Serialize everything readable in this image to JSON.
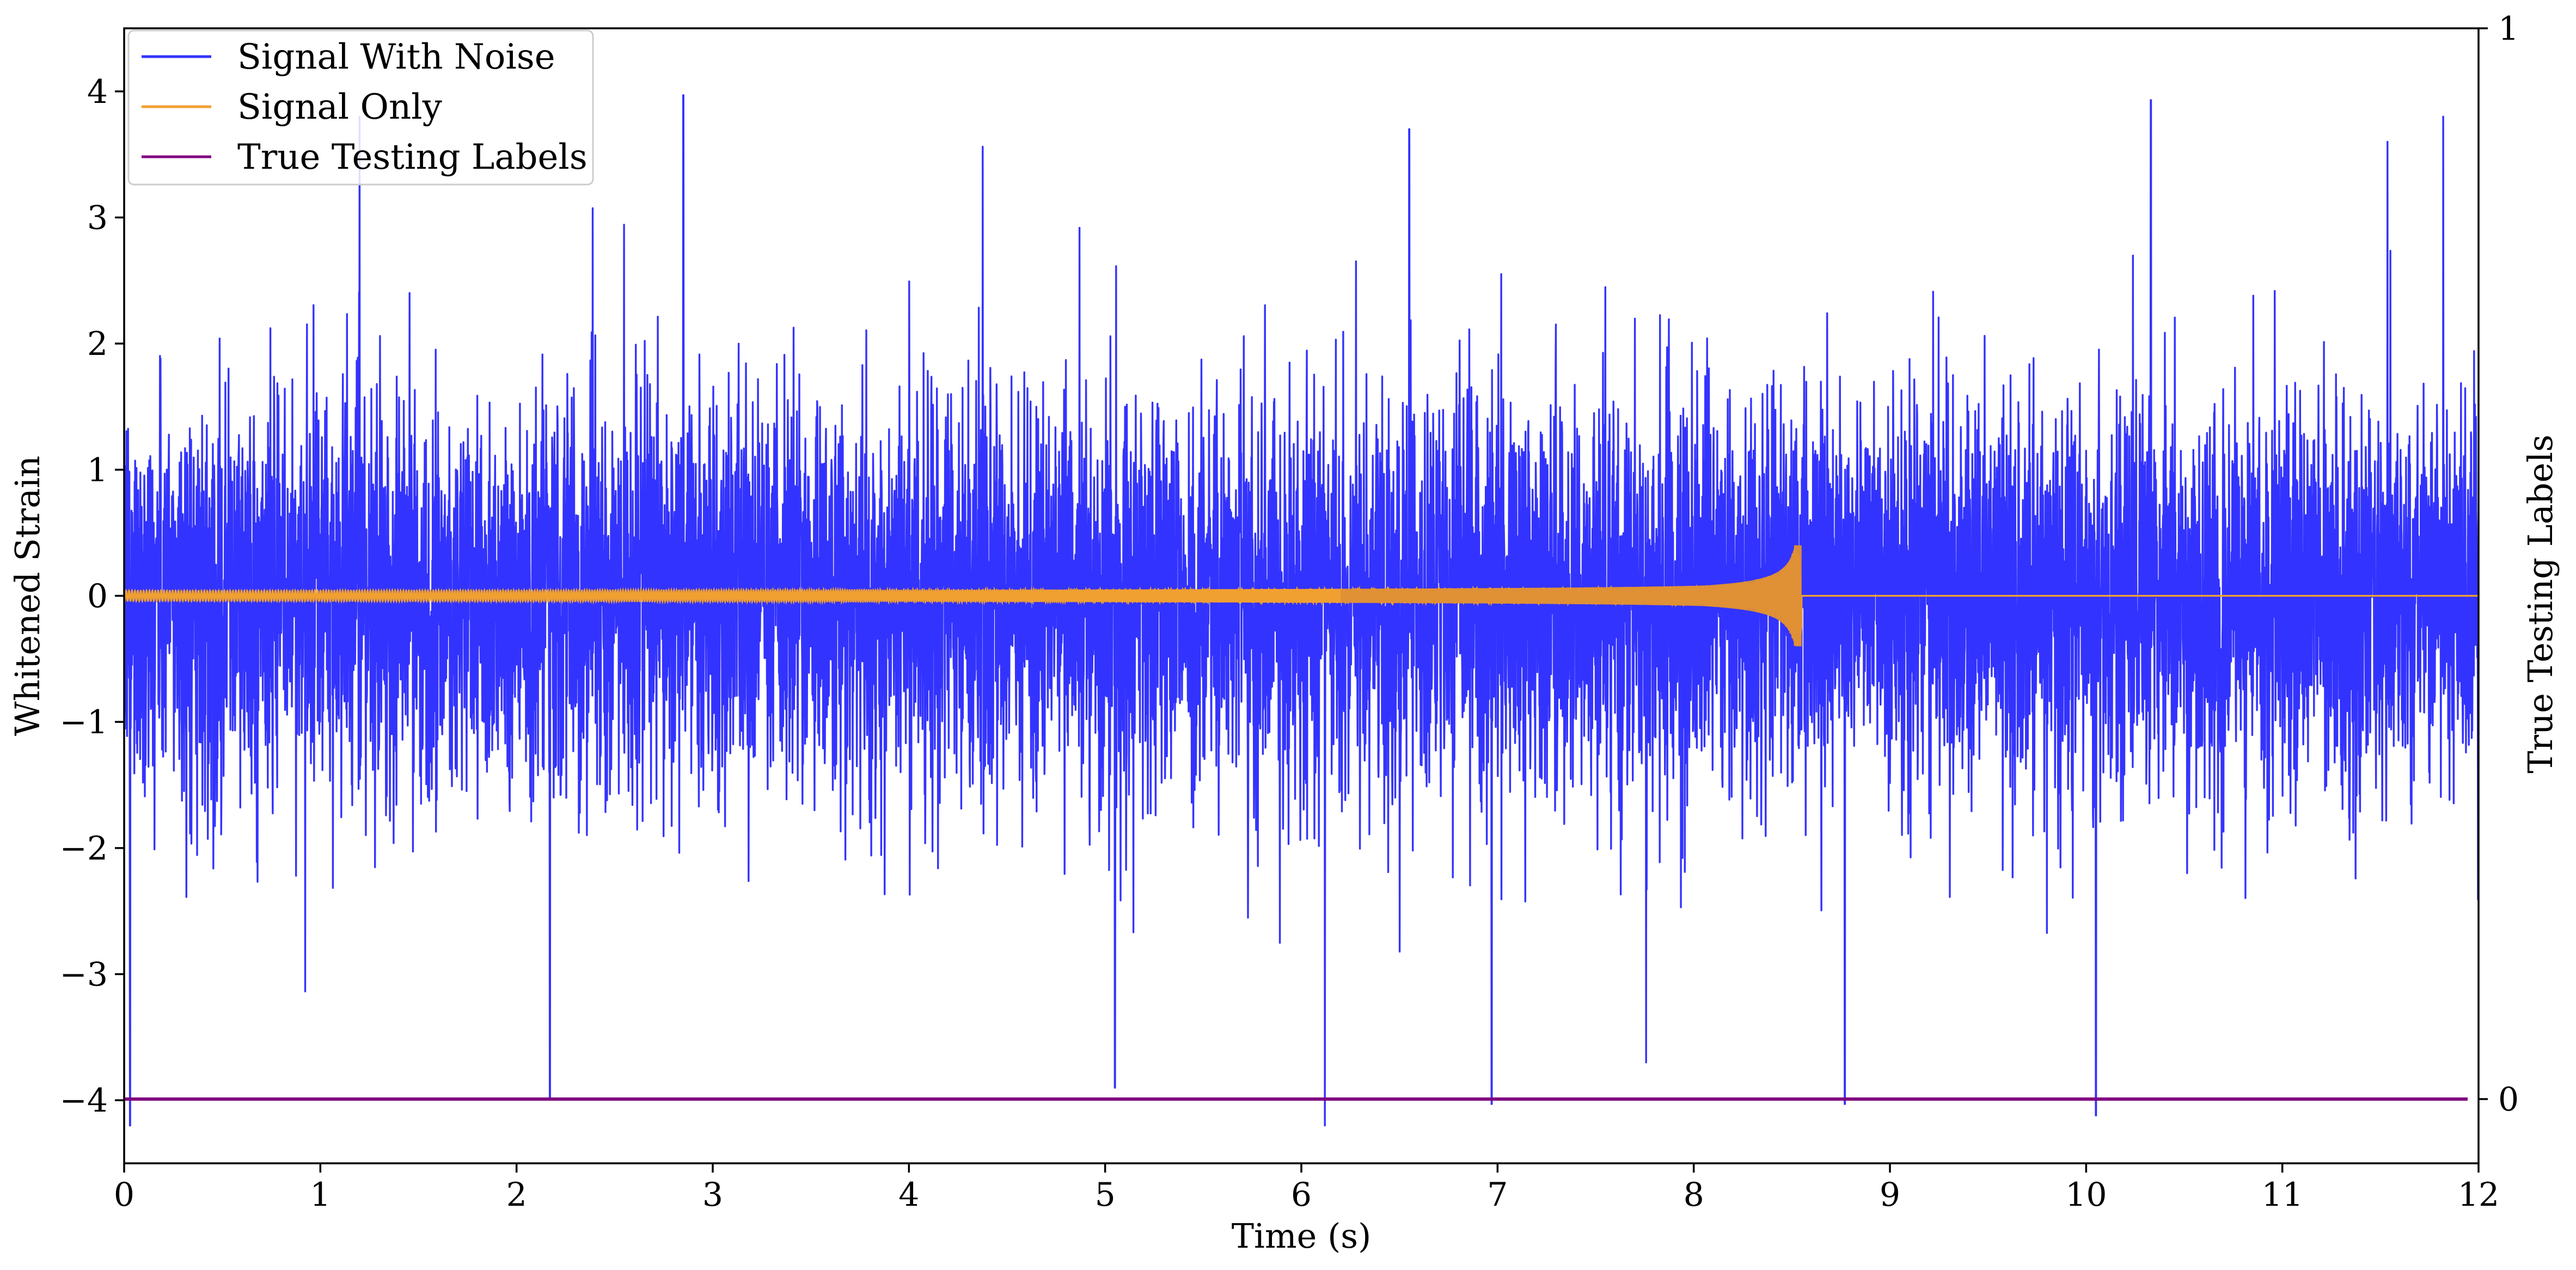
{
  "chart_data": {
    "type": "line",
    "xlabel": "Time (s)",
    "ylabel": "Whitened Strain",
    "y2label": "True Testing Labels",
    "xlim": [
      0,
      12
    ],
    "ylim": [
      -4.5,
      4.5
    ],
    "y2lim": [
      -0.06,
      1.0
    ],
    "x_ticks": [
      0,
      1,
      2,
      3,
      4,
      5,
      6,
      7,
      8,
      9,
      10,
      11,
      12
    ],
    "x_tick_labels": [
      "0",
      "1",
      "2",
      "3",
      "4",
      "5",
      "6",
      "7",
      "8",
      "9",
      "10",
      "11",
      "12"
    ],
    "y_ticks": [
      -4,
      -3,
      -2,
      -1,
      0,
      1,
      2,
      3,
      4
    ],
    "y_tick_labels": [
      "−4",
      "−3",
      "−2",
      "−1",
      "0",
      "1",
      "2",
      "3",
      "4"
    ],
    "y2_ticks": [
      0,
      1
    ],
    "y2_tick_labels": [
      "0",
      "1"
    ],
    "grid": false,
    "legend_position": "top-left",
    "series": [
      {
        "name": "Signal With Noise",
        "color": "#3333ff",
        "kind": "noisy strain",
        "x_range": [
          0,
          12
        ],
        "envelope_typical": [
          -1.7,
          1.8
        ],
        "peak_spikes": [
          {
            "x": 0.03,
            "y": -4.2
          },
          {
            "x": 1.2,
            "y": 3.8
          },
          {
            "x": 2.17,
            "y": -3.98
          },
          {
            "x": 2.85,
            "y": 3.97
          },
          {
            "x": 5.05,
            "y": -3.9
          },
          {
            "x": 6.12,
            "y": -4.2
          },
          {
            "x": 6.55,
            "y": 3.7
          },
          {
            "x": 6.97,
            "y": -4.03
          },
          {
            "x": 8.77,
            "y": -4.03
          },
          {
            "x": 10.05,
            "y": -4.12
          },
          {
            "x": 10.33,
            "y": 3.93
          },
          {
            "x": 11.82,
            "y": 3.8
          }
        ]
      },
      {
        "name": "Signal Only",
        "color": "#f0a030",
        "kind": "chirp",
        "x_range": [
          0,
          12
        ],
        "merger_time": 8.55,
        "peak_amplitude": 0.4,
        "early_amplitude": 0.04
      },
      {
        "name": "True Testing Labels",
        "color": "#800080",
        "axis": "right",
        "x": [
          0,
          12
        ],
        "y": [
          0,
          0
        ]
      }
    ]
  }
}
